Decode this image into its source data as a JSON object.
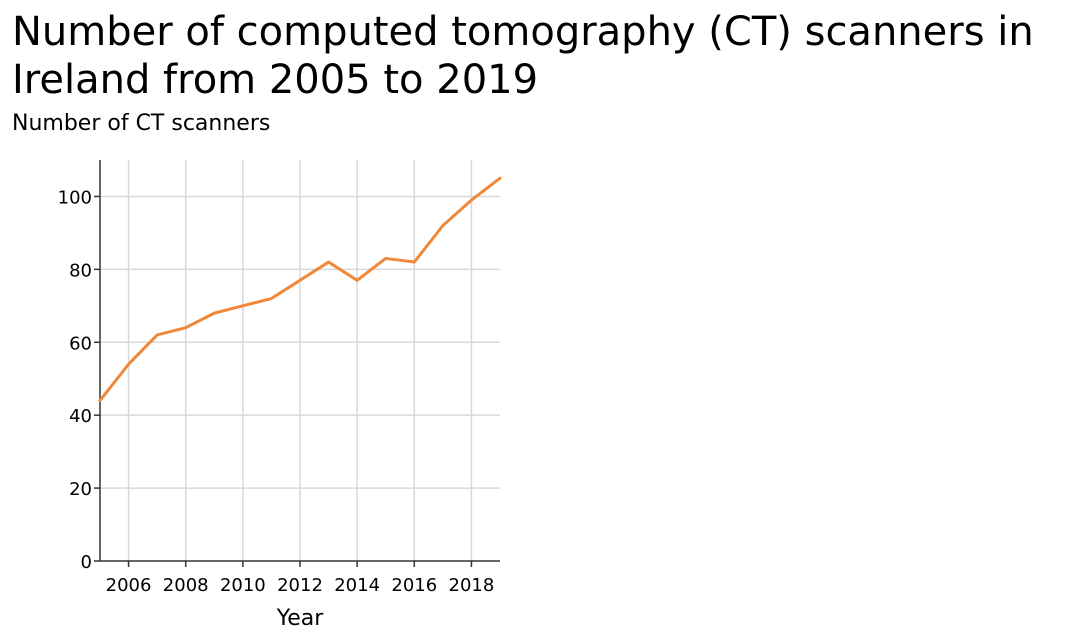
{
  "chart_data": {
    "type": "line",
    "title": "Number of computed tomography (CT) scanners in Ireland from 2005 to 2019",
    "ylabel": "Number of CT scanners",
    "xlabel": "Year",
    "xlim": [
      2005,
      2019
    ],
    "ylim": [
      0,
      110
    ],
    "x_ticks": [
      2006,
      2008,
      2010,
      2012,
      2014,
      2016,
      2018
    ],
    "y_ticks": [
      0,
      20,
      40,
      60,
      80,
      100
    ],
    "grid": true,
    "line_color": "#f0883a",
    "x": [
      2005,
      2006,
      2007,
      2008,
      2009,
      2010,
      2011,
      2012,
      2013,
      2014,
      2015,
      2016,
      2017,
      2018,
      2019
    ],
    "y": [
      44,
      54,
      62,
      64,
      68,
      70,
      72,
      77,
      82,
      77,
      83,
      82,
      92,
      99,
      105
    ]
  }
}
